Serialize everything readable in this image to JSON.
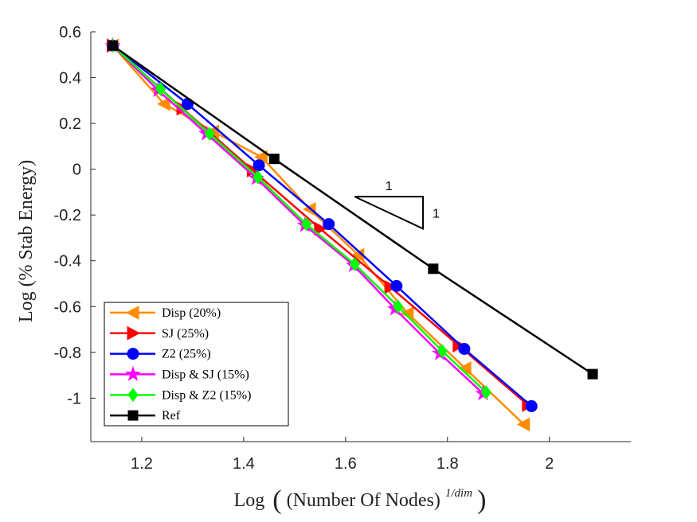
{
  "chart_data": {
    "type": "line",
    "xlabel_prefix": "Log",
    "xlabel_main": "(Number Of Nodes)",
    "xlabel_exp": "1/dim",
    "ylabel": "Log (% Stab Energy)",
    "xlim": [
      1.1,
      2.16
    ],
    "ylim": [
      -1.19,
      0.6
    ],
    "x_ticks": [
      1.2,
      1.4,
      1.6,
      1.8,
      2
    ],
    "x_tick_labels": [
      "1.2",
      "1.4",
      "1.6",
      "1.8",
      "2"
    ],
    "y_ticks": [
      0.6,
      0.4,
      0.2,
      0,
      -0.2,
      -0.4,
      -0.6,
      -0.8,
      -1
    ],
    "y_tick_labels": [
      "0.6",
      "0.4",
      "0.2",
      "0",
      "-0.2",
      "-0.4",
      "-0.6",
      "-0.8",
      "-1"
    ],
    "grid": false,
    "legend_position": "bottom-left",
    "series": [
      {
        "name": "Disp (20%)",
        "color": "#FF8C00",
        "marker": "triangle-left",
        "x": [
          1.143,
          1.244,
          1.34,
          1.435,
          1.53,
          1.625,
          1.722,
          1.835,
          1.95
        ],
        "y": [
          0.54,
          0.285,
          0.165,
          0.053,
          -0.175,
          -0.375,
          -0.63,
          -0.87,
          -1.115
        ]
      },
      {
        "name": "SJ (25%)",
        "color": "#FF0000",
        "marker": "triangle-right",
        "x": [
          1.143,
          1.28,
          1.418,
          1.55,
          1.688,
          1.822,
          1.958
        ],
        "y": [
          0.54,
          0.265,
          -0.005,
          -0.26,
          -0.515,
          -0.77,
          -1.03
        ]
      },
      {
        "name": "Z2 (25%)",
        "color": "#0000FF",
        "marker": "circle",
        "x": [
          1.143,
          1.29,
          1.43,
          1.567,
          1.7,
          1.833,
          1.965
        ],
        "y": [
          0.54,
          0.285,
          0.017,
          -0.24,
          -0.51,
          -0.785,
          -1.035
        ]
      },
      {
        "name": "Disp & SJ (15%)",
        "color": "#FF00FF",
        "marker": "star",
        "x": [
          1.143,
          1.232,
          1.327,
          1.425,
          1.52,
          1.616,
          1.697,
          1.785,
          1.87
        ],
        "y": [
          0.54,
          0.345,
          0.155,
          -0.04,
          -0.245,
          -0.42,
          -0.61,
          -0.805,
          -0.98
        ]
      },
      {
        "name": "Disp & Z2 (15%)",
        "color": "#00FF00",
        "marker": "diamond",
        "x": [
          1.143,
          1.237,
          1.333,
          1.428,
          1.523,
          1.618,
          1.703,
          1.79,
          1.876
        ],
        "y": [
          0.54,
          0.35,
          0.155,
          -0.035,
          -0.24,
          -0.415,
          -0.6,
          -0.795,
          -0.975
        ]
      },
      {
        "name": "Ref",
        "color": "#000000",
        "marker": "square",
        "x": [
          1.143,
          1.46,
          1.772,
          2.085
        ],
        "y": [
          0.54,
          0.045,
          -0.435,
          -0.895
        ]
      }
    ],
    "annotations": {
      "slope_triangle": {
        "x": [
          1.618,
          1.752,
          1.752
        ],
        "y": [
          -0.12,
          -0.12,
          -0.26
        ],
        "horizontal_label": "1",
        "vertical_label": "1"
      }
    }
  }
}
